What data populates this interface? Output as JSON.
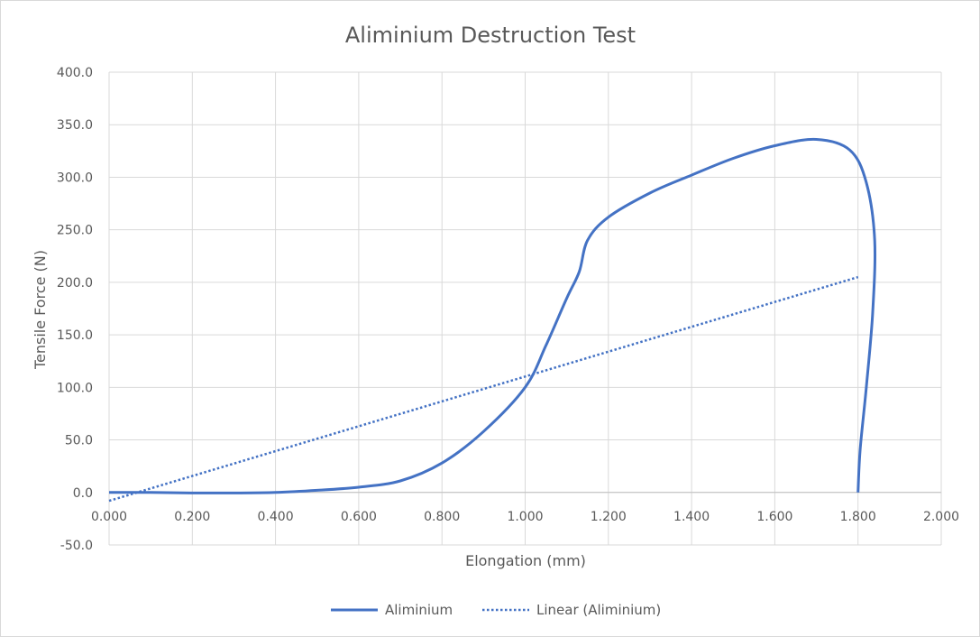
{
  "chart_data": {
    "type": "line",
    "title": "Aliminium Destruction Test",
    "xlabel": "Elongation (mm)",
    "ylabel": "Tensile Force (N)",
    "xlim": [
      0,
      2.0
    ],
    "ylim": [
      -50,
      400
    ],
    "x_ticks": [
      "0.000",
      "0.200",
      "0.400",
      "0.600",
      "0.800",
      "1.000",
      "1.200",
      "1.400",
      "1.600",
      "1.800",
      "2.000"
    ],
    "y_ticks": [
      "400.0",
      "350.0",
      "300.0",
      "250.0",
      "200.0",
      "150.0",
      "100.0",
      "50.0",
      "0.0",
      "-50.0"
    ],
    "grid": true,
    "legend_position": "bottom",
    "series": [
      {
        "name": "Aliminium",
        "style": "solid",
        "color": "#4472c4",
        "x": [
          0.0,
          0.1,
          0.2,
          0.3,
          0.4,
          0.5,
          0.6,
          0.7,
          0.8,
          0.9,
          1.0,
          1.05,
          1.1,
          1.13,
          1.15,
          1.2,
          1.3,
          1.4,
          1.5,
          1.6,
          1.7,
          1.78,
          1.82,
          1.84,
          1.835,
          1.82,
          1.805,
          1.8
        ],
        "y": [
          0.0,
          0.0,
          -0.5,
          -0.5,
          0.0,
          2.0,
          5.0,
          11.0,
          28.0,
          58.0,
          100.0,
          140.0,
          185.0,
          210.0,
          240.0,
          262.0,
          285.0,
          302.0,
          318.0,
          330.0,
          336.0,
          326.0,
          295.0,
          240.0,
          170.0,
          100.0,
          40.0,
          0.0
        ]
      },
      {
        "name": "Linear (Aliminium)",
        "style": "dotted",
        "color": "#4472c4",
        "x": [
          0.0,
          1.8
        ],
        "y": [
          -8.0,
          205.0
        ]
      }
    ]
  }
}
